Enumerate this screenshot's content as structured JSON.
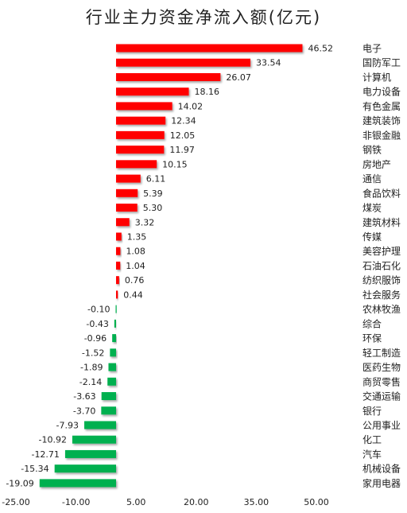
{
  "chart_data": {
    "type": "bar",
    "orientation": "horizontal",
    "title": "行业主力资金净流入额(亿元)",
    "xlabel": "",
    "ylabel": "",
    "xlim": [
      -25,
      50
    ],
    "xticks": [
      -25,
      -10,
      5,
      20,
      35,
      50
    ],
    "xtick_labels": [
      "-25.00",
      "-10.00",
      "5.00",
      "20.00",
      "35.00",
      "50.00"
    ],
    "grid": false,
    "legend": "none",
    "colors": {
      "positive": "#ff0000",
      "negative": "#00b050"
    },
    "categories": [
      "电子",
      "国防军工",
      "计算机",
      "电力设备",
      "有色金属",
      "建筑装饰",
      "非银金融",
      "钢铁",
      "房地产",
      "通信",
      "食品饮料",
      "煤炭",
      "建筑材料",
      "传媒",
      "美容护理",
      "石油石化",
      "纺织服饰",
      "社会服务",
      "农林牧渔",
      "综合",
      "环保",
      "轻工制造",
      "医药生物",
      "商贸零售",
      "交通运输",
      "银行",
      "公用事业",
      "化工",
      "汽车",
      "机械设备",
      "家用电器"
    ],
    "values": [
      46.52,
      33.54,
      26.07,
      18.16,
      14.02,
      12.34,
      12.05,
      11.97,
      10.15,
      6.11,
      5.39,
      5.3,
      3.32,
      1.35,
      1.08,
      1.04,
      0.76,
      0.44,
      -0.1,
      -0.43,
      -0.96,
      -1.52,
      -1.89,
      -2.14,
      -3.63,
      -3.7,
      -7.93,
      -10.92,
      -12.71,
      -15.34,
      -19.09
    ],
    "value_labels": [
      "46.52",
      "33.54",
      "26.07",
      "18.16",
      "14.02",
      "12.34",
      "12.05",
      "11.97",
      "10.15",
      "6.11",
      "5.39",
      "5.30",
      "3.32",
      "1.35",
      "1.08",
      "1.04",
      "0.76",
      "0.44",
      "-0.10",
      "-0.43",
      "-0.96",
      "-1.52",
      "-1.89",
      "-2.14",
      "-3.63",
      "-3.70",
      "-7.93",
      "-10.92",
      "-12.71",
      "-15.34",
      "-19.09"
    ]
  }
}
